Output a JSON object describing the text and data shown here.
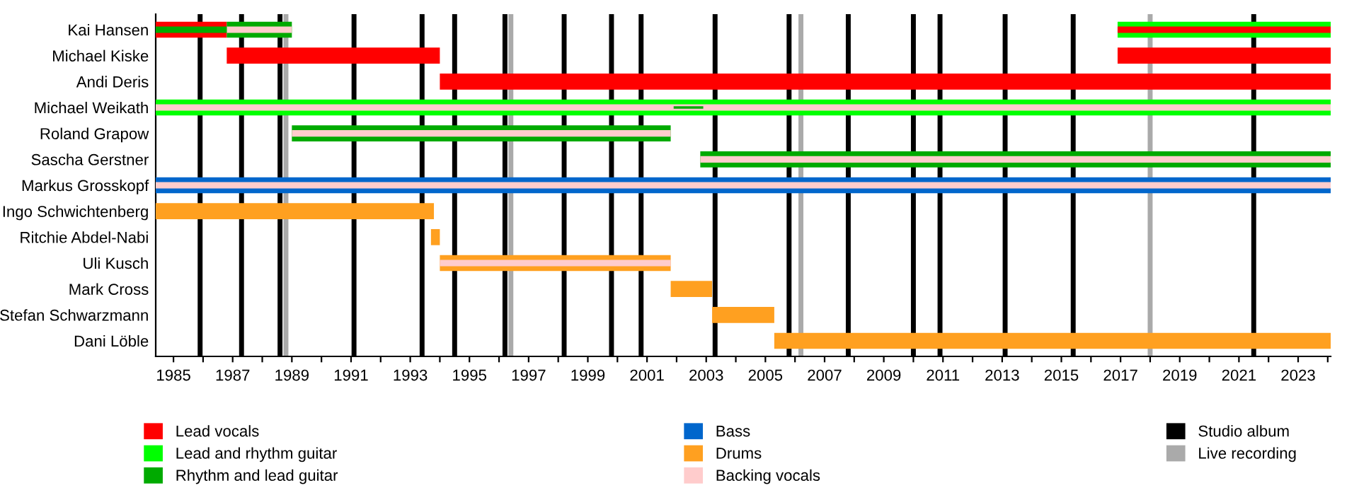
{
  "chart_data": {
    "type": "bar",
    "orientation": "horizontal",
    "legend": "bottom",
    "grid": false,
    "categories": [
      "Kai Hansen",
      "Michael Kiske",
      "Andi Deris",
      "Michael Weikath",
      "Roland Grapow",
      "Sascha Gerstner",
      "Markus Grosskopf",
      "Ingo Schwichtenberg",
      "Ritchie Abdel-Nabi",
      "Uli Kusch",
      "Mark Cross",
      "Stefan Schwarzmann",
      "Dani Löble"
    ],
    "xlim": [
      1984.4,
      2024.1
    ],
    "xticks": [
      1985,
      {
        "value": 1986,
        "label": null
      },
      1987,
      {
        "value": 1988,
        "label": null
      },
      1989,
      {
        "value": 1990,
        "label": null
      },
      1991,
      {
        "value": 1992,
        "label": null
      },
      1993,
      {
        "value": 1994,
        "label": null
      },
      1995,
      {
        "value": 1996,
        "label": null
      },
      1997,
      {
        "value": 1998,
        "label": null
      },
      1999,
      {
        "value": 2000,
        "label": null
      },
      2001,
      {
        "value": 2002,
        "label": null
      },
      2003,
      {
        "value": 2004,
        "label": null
      },
      2005,
      {
        "value": 2006,
        "label": null
      },
      2007,
      {
        "value": 2008,
        "label": null
      },
      2009,
      {
        "value": 2010,
        "label": null
      },
      2011,
      {
        "value": 2012,
        "label": null
      },
      2013,
      {
        "value": 2014,
        "label": null
      },
      2015,
      {
        "value": 2016,
        "label": null
      },
      2017,
      {
        "value": 2018,
        "label": null
      },
      2019,
      {
        "value": 2020,
        "label": null
      },
      2021,
      {
        "value": 2022,
        "label": null
      },
      2023,
      {
        "value": 2024,
        "label": null
      }
    ],
    "series": [
      {
        "name": "Lead vocals",
        "color": "#ff0000",
        "base": [
          1984.4,
          1986.8,
          1994.0,
          null,
          null,
          null,
          null,
          null,
          null,
          null,
          null,
          null,
          null
        ],
        "values": [
          2.4,
          7.2,
          30.1,
          null,
          null,
          null,
          null,
          null,
          null,
          null,
          null,
          null,
          null
        ]
      },
      {
        "name": "Lead and rhythm guitar",
        "color": "#00ff00",
        "base": [
          2016.9,
          null,
          null,
          1984.4,
          null,
          null,
          null,
          null,
          null,
          null,
          null,
          null,
          null
        ],
        "values": [
          7.2,
          null,
          null,
          39.7,
          null,
          null,
          null,
          null,
          null,
          null,
          null,
          null,
          null
        ]
      },
      {
        "name": "Rhythm and lead guitar",
        "color": "#00aa00",
        "base": [
          1986.8,
          null,
          null,
          null,
          1989.0,
          2002.8,
          null,
          null,
          null,
          null,
          null,
          null,
          null
        ],
        "values": [
          2.2,
          null,
          null,
          null,
          12.8,
          21.3,
          null,
          null,
          null,
          null,
          null,
          null,
          null
        ]
      },
      {
        "name": "Bass",
        "color": "#0066cc",
        "base": [
          null,
          null,
          null,
          null,
          null,
          null,
          1984.4,
          null,
          null,
          null,
          null,
          null,
          null
        ],
        "values": [
          null,
          null,
          null,
          null,
          null,
          null,
          39.7,
          null,
          null,
          null,
          null,
          null,
          null
        ]
      },
      {
        "name": "Drums",
        "color": "#ffa020",
        "base": [
          null,
          null,
          null,
          null,
          null,
          null,
          null,
          1984.4,
          1993.7,
          1994.0,
          2001.8,
          2003.2,
          2005.3
        ],
        "values": [
          null,
          null,
          null,
          null,
          null,
          null,
          null,
          9.4,
          0.3,
          7.8,
          1.4,
          2.1,
          18.8
        ]
      },
      {
        "name": "Backing vocals",
        "color": "#ffcccc",
        "base": [
          1986.8,
          null,
          null,
          1984.4,
          1989.0,
          2002.8,
          1984.4,
          null,
          null,
          1994.0,
          null,
          null,
          null
        ],
        "values": [
          2.2,
          null,
          null,
          39.7,
          12.8,
          21.3,
          39.7,
          null,
          null,
          7.8,
          null,
          null,
          null
        ]
      },
      {
        "color": "#ff0000",
        "base": [
          2016.9,
          2016.9,
          null,
          null,
          null,
          null,
          null,
          null,
          null,
          null,
          null,
          null,
          null
        ],
        "values": [
          7.2,
          7.2,
          null,
          null,
          null,
          null,
          null,
          null,
          null,
          null,
          null,
          null,
          null
        ]
      },
      {
        "color": "#00aa00",
        "base": [
          1984.4,
          null,
          null,
          2001.9,
          null,
          null,
          null,
          null,
          null,
          null,
          null,
          null,
          null
        ],
        "values": [
          2.4,
          null,
          null,
          1.0,
          null,
          null,
          null,
          null,
          null,
          null,
          null,
          null,
          null
        ]
      }
    ],
    "ref_lines": [
      {
        "axis": "x",
        "value": 1985.9,
        "label": "Studio album",
        "color": "#000000"
      },
      {
        "axis": "x",
        "value": 1987.3,
        "color": "#000000"
      },
      {
        "axis": "x",
        "value": 1988.6,
        "color": "#000000"
      },
      {
        "axis": "x",
        "value": 1988.8,
        "label": "Live recording",
        "color": "#aaaaaa"
      },
      {
        "axis": "x",
        "value": 1991.1,
        "color": "#000000"
      },
      {
        "axis": "x",
        "value": 1993.4,
        "color": "#000000"
      },
      {
        "axis": "x",
        "value": 1994.5,
        "color": "#000000"
      },
      {
        "axis": "x",
        "value": 1996.2,
        "color": "#000000"
      },
      {
        "axis": "x",
        "value": 1996.4,
        "color": "#aaaaaa"
      },
      {
        "axis": "x",
        "value": 1998.2,
        "color": "#000000"
      },
      {
        "axis": "x",
        "value": 1999.8,
        "color": "#000000"
      },
      {
        "axis": "x",
        "value": 2000.8,
        "color": "#000000"
      },
      {
        "axis": "x",
        "value": 2003.3,
        "color": "#000000"
      },
      {
        "axis": "x",
        "value": 2005.8,
        "color": "#000000"
      },
      {
        "axis": "x",
        "value": 2006.2,
        "color": "#aaaaaa"
      },
      {
        "axis": "x",
        "value": 2007.8,
        "color": "#000000"
      },
      {
        "axis": "x",
        "value": 2010.0,
        "color": "#000000"
      },
      {
        "axis": "x",
        "value": 2010.9,
        "color": "#000000"
      },
      {
        "axis": "x",
        "value": 2013.1,
        "color": "#000000"
      },
      {
        "axis": "x",
        "value": 2015.4,
        "color": "#000000"
      },
      {
        "axis": "x",
        "value": 2018.0,
        "color": "#aaaaaa"
      },
      {
        "axis": "x",
        "value": 2021.5,
        "color": "#000000"
      }
    ]
  }
}
